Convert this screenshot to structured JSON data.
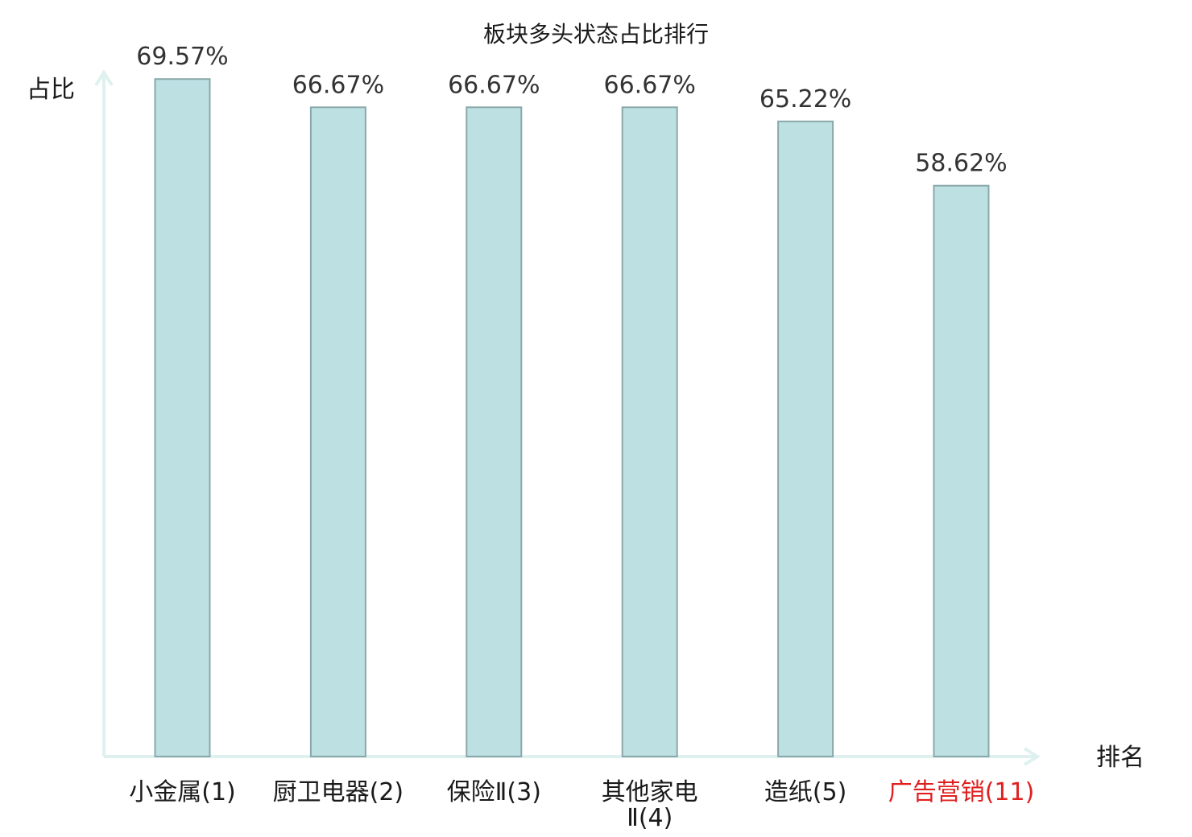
{
  "chart_data": {
    "type": "bar",
    "title": "板块多头状态占比排行",
    "ylabel": "占比",
    "xlabel": "排名",
    "ylim": [
      0,
      70
    ],
    "grid": false,
    "legend": "none",
    "categories": [
      {
        "name": "小金属",
        "rank": "(1)",
        "highlight": false
      },
      {
        "name": "厨卫电器",
        "rank": "(2)",
        "highlight": false
      },
      {
        "name": "保险Ⅱ",
        "rank": "(3)",
        "highlight": false
      },
      {
        "name": "其他家电",
        "rank": "Ⅱ(4)",
        "highlight": false
      },
      {
        "name": "造纸",
        "rank": "(5)",
        "highlight": false
      },
      {
        "name": "广告营销",
        "rank": "(11)",
        "highlight": true
      }
    ],
    "values": [
      69.57,
      66.67,
      66.67,
      66.67,
      65.22,
      58.62
    ],
    "value_labels": [
      "69.57%",
      "66.67%",
      "66.67%",
      "66.67%",
      "65.22%",
      "58.62%"
    ],
    "colors": {
      "bar_fill": "#bde0e3",
      "bar_stroke": "#8aa8aa",
      "axis": "#dff1ef",
      "highlight": "#e02020"
    }
  }
}
